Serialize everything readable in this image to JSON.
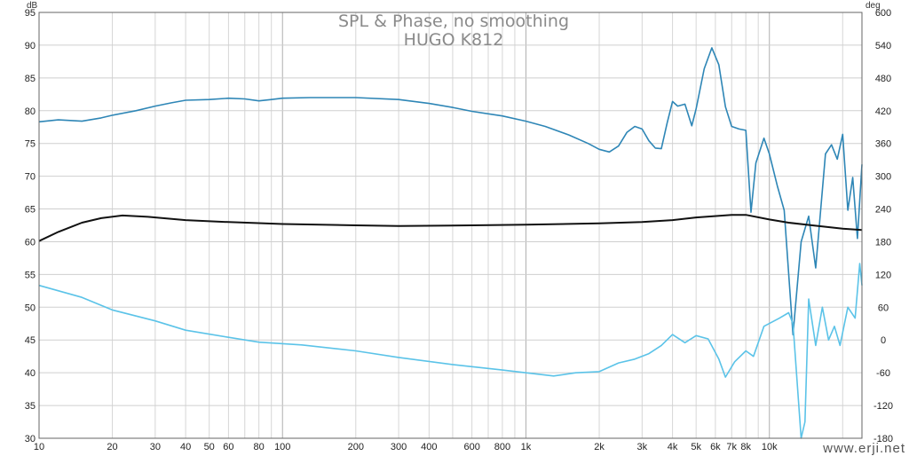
{
  "chart_data": {
    "type": "line",
    "title": "SPL & Phase, no smoothing",
    "subtitle": "HUGO K812",
    "xscale": "log",
    "xlim": [
      10,
      24000
    ],
    "x_ticks": [
      10,
      20,
      30,
      40,
      50,
      60,
      80,
      100,
      200,
      300,
      400,
      600,
      800,
      1000,
      2000,
      3000,
      4000,
      5000,
      6000,
      7000,
      8000,
      10000
    ],
    "x_tick_labels": [
      "10",
      "20",
      "30",
      "40",
      "50",
      "60",
      "80",
      "100",
      "200",
      "300",
      "400",
      "600",
      "800",
      "1k",
      "2k",
      "3k",
      "4k",
      "5k",
      "6k",
      "7k",
      "8k",
      "10k"
    ],
    "y_left": {
      "unit": "dB",
      "ylim": [
        30,
        95
      ],
      "ticks": [
        30,
        35,
        40,
        45,
        50,
        55,
        60,
        65,
        70,
        75,
        80,
        85,
        90,
        95
      ]
    },
    "y_right": {
      "unit": "deg",
      "ylim": [
        -180,
        600
      ],
      "ticks": [
        -180,
        -120,
        -60,
        0,
        60,
        120,
        180,
        240,
        300,
        360,
        420,
        480,
        540,
        600
      ]
    },
    "grid": true,
    "series": [
      {
        "axis": "left",
        "color": "#2e86b6",
        "points": [
          [
            10,
            78.3
          ],
          [
            12,
            78.6
          ],
          [
            15,
            78.4
          ],
          [
            18,
            78.9
          ],
          [
            20,
            79.3
          ],
          [
            25,
            80.0
          ],
          [
            30,
            80.7
          ],
          [
            35,
            81.2
          ],
          [
            40,
            81.6
          ],
          [
            50,
            81.7
          ],
          [
            60,
            81.9
          ],
          [
            70,
            81.8
          ],
          [
            80,
            81.5
          ],
          [
            90,
            81.7
          ],
          [
            100,
            81.9
          ],
          [
            130,
            82.0
          ],
          [
            200,
            82.0
          ],
          [
            300,
            81.7
          ],
          [
            400,
            81.1
          ],
          [
            500,
            80.5
          ],
          [
            600,
            79.9
          ],
          [
            800,
            79.2
          ],
          [
            1000,
            78.4
          ],
          [
            1200,
            77.6
          ],
          [
            1500,
            76.3
          ],
          [
            1800,
            75.0
          ],
          [
            2000,
            74.1
          ],
          [
            2200,
            73.7
          ],
          [
            2400,
            74.6
          ],
          [
            2600,
            76.7
          ],
          [
            2800,
            77.6
          ],
          [
            3000,
            77.2
          ],
          [
            3200,
            75.4
          ],
          [
            3400,
            74.3
          ],
          [
            3600,
            74.2
          ],
          [
            3800,
            78.1
          ],
          [
            4000,
            81.4
          ],
          [
            4200,
            80.7
          ],
          [
            4500,
            81.0
          ],
          [
            4800,
            77.7
          ],
          [
            5000,
            80.3
          ],
          [
            5400,
            86.4
          ],
          [
            5800,
            89.6
          ],
          [
            6200,
            87.0
          ],
          [
            6600,
            80.6
          ],
          [
            7000,
            77.6
          ],
          [
            7500,
            77.2
          ],
          [
            8000,
            77.0
          ],
          [
            8400,
            64.5
          ],
          [
            8800,
            72.0
          ],
          [
            9500,
            75.8
          ],
          [
            10000,
            73.4
          ],
          [
            10800,
            68.4
          ],
          [
            11500,
            64.8
          ],
          [
            12500,
            45.8
          ],
          [
            13500,
            60.0
          ],
          [
            14500,
            63.9
          ],
          [
            15500,
            56.0
          ],
          [
            17000,
            73.4
          ],
          [
            18000,
            74.8
          ],
          [
            19000,
            72.6
          ],
          [
            20000,
            76.4
          ],
          [
            21000,
            64.8
          ],
          [
            22000,
            69.8
          ],
          [
            23000,
            60.5
          ],
          [
            24000,
            71.8
          ]
        ]
      },
      {
        "axis": "right",
        "color": "#5bc3e8",
        "points": [
          [
            10,
            100
          ],
          [
            15,
            78
          ],
          [
            20,
            55
          ],
          [
            30,
            35
          ],
          [
            40,
            18
          ],
          [
            60,
            5
          ],
          [
            80,
            -4
          ],
          [
            120,
            -9
          ],
          [
            200,
            -20
          ],
          [
            300,
            -32
          ],
          [
            500,
            -45
          ],
          [
            800,
            -55
          ],
          [
            1000,
            -60
          ],
          [
            1300,
            -66
          ],
          [
            1600,
            -60
          ],
          [
            2000,
            -58
          ],
          [
            2400,
            -42
          ],
          [
            2800,
            -35
          ],
          [
            3200,
            -25
          ],
          [
            3600,
            -10
          ],
          [
            4000,
            10
          ],
          [
            4500,
            -5
          ],
          [
            5000,
            8
          ],
          [
            5600,
            2
          ],
          [
            6200,
            -35
          ],
          [
            6600,
            -68
          ],
          [
            7200,
            -40
          ],
          [
            8000,
            -20
          ],
          [
            8600,
            -30
          ],
          [
            9500,
            25
          ],
          [
            11000,
            40
          ],
          [
            12000,
            50
          ],
          [
            12500,
            30
          ],
          [
            13500,
            -180
          ],
          [
            14000,
            -150
          ],
          [
            14500,
            75
          ],
          [
            15500,
            -10
          ],
          [
            16500,
            60
          ],
          [
            17500,
            0
          ],
          [
            18500,
            25
          ],
          [
            19500,
            -10
          ],
          [
            21000,
            60
          ],
          [
            22500,
            40
          ],
          [
            23500,
            140
          ],
          [
            24000,
            100
          ]
        ]
      },
      {
        "axis": "left",
        "color": "#111111",
        "points": [
          [
            10,
            60.1
          ],
          [
            12,
            61.5
          ],
          [
            15,
            62.9
          ],
          [
            18,
            63.6
          ],
          [
            22,
            64.0
          ],
          [
            28,
            63.8
          ],
          [
            40,
            63.3
          ],
          [
            60,
            63.0
          ],
          [
            100,
            62.7
          ],
          [
            200,
            62.5
          ],
          [
            300,
            62.4
          ],
          [
            600,
            62.5
          ],
          [
            1000,
            62.6
          ],
          [
            2000,
            62.8
          ],
          [
            3000,
            63.0
          ],
          [
            4000,
            63.3
          ],
          [
            5000,
            63.7
          ],
          [
            7000,
            64.1
          ],
          [
            8000,
            64.1
          ],
          [
            10000,
            63.4
          ],
          [
            12000,
            62.9
          ],
          [
            15000,
            62.5
          ],
          [
            20000,
            62.0
          ],
          [
            24000,
            61.8
          ]
        ]
      }
    ]
  },
  "watermark": "www.erji.net"
}
